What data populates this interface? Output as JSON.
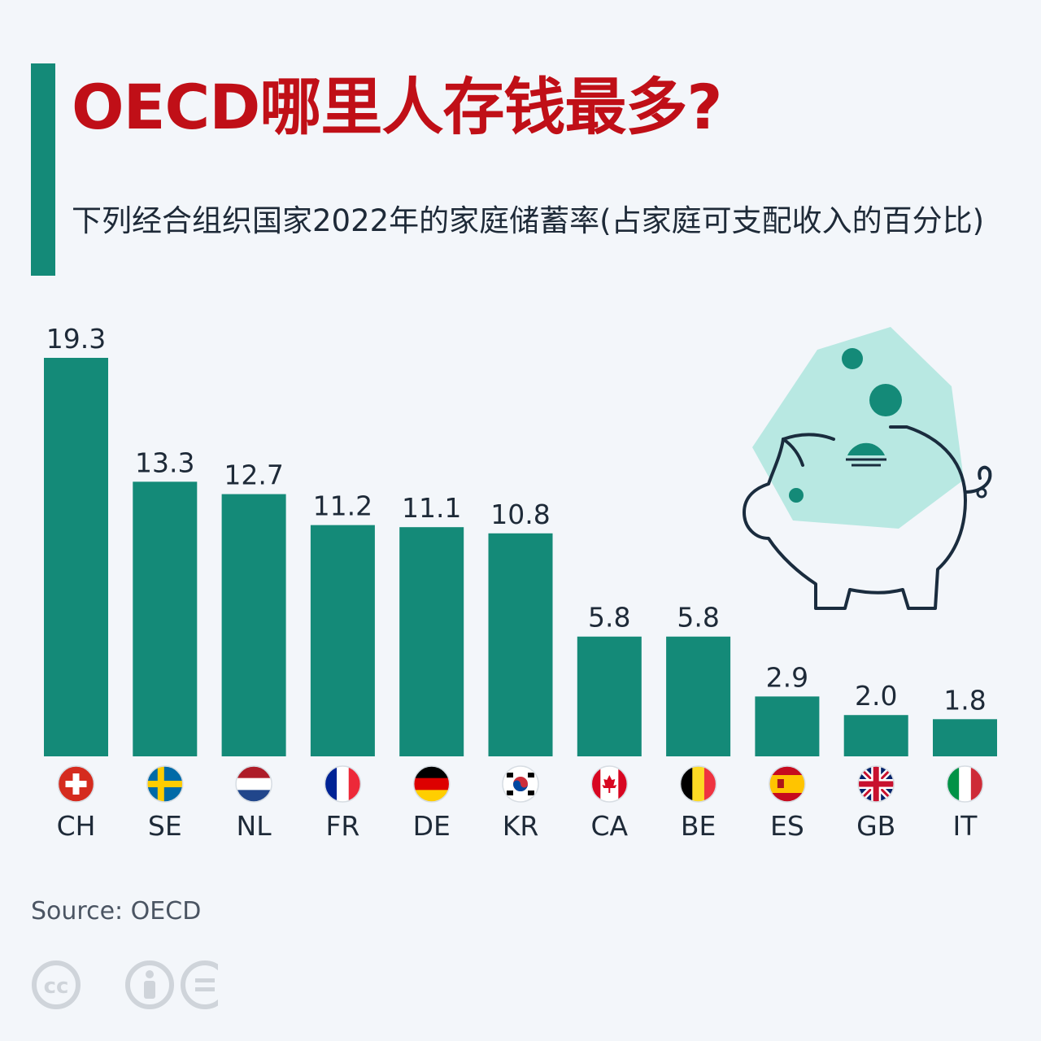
{
  "header": {
    "title": "OECD哪里人存钱最多?",
    "subtitle": "下列经合组织国家2022年的家庭储蓄率(占家庭可支配收入的百分比)"
  },
  "colors": {
    "bar": "#148a78",
    "title": "#c00f17",
    "accent": "#148a78"
  },
  "chart_data": {
    "type": "bar",
    "title": "OECD哪里人存钱最多?",
    "subtitle": "下列经合组织国家2022年的家庭储蓄率(占家庭可支配收入的百分比)",
    "categories": [
      "CH",
      "SE",
      "NL",
      "FR",
      "DE",
      "KR",
      "CA",
      "BE",
      "ES",
      "GB",
      "IT"
    ],
    "values": [
      19.3,
      13.3,
      12.7,
      11.2,
      11.1,
      10.8,
      5.8,
      5.8,
      2.9,
      2.0,
      1.8
    ],
    "value_labels": [
      "19.3",
      "13.3",
      "12.7",
      "11.2",
      "11.1",
      "10.8",
      "5.8",
      "5.8",
      "2.9",
      "2.0",
      "1.8"
    ],
    "category_icons": [
      "flag-switzerland-icon",
      "flag-sweden-icon",
      "flag-netherlands-icon",
      "flag-france-icon",
      "flag-germany-icon",
      "flag-south-korea-icon",
      "flag-canada-icon",
      "flag-belgium-icon",
      "flag-spain-icon",
      "flag-uk-icon",
      "flag-italy-icon"
    ],
    "ylim": [
      0,
      19.3
    ],
    "grid": false,
    "legend": "none"
  },
  "footer": {
    "source": "Source: OECD",
    "license_icons": [
      "cc-icon",
      "by-icon",
      "nd-icon"
    ]
  }
}
